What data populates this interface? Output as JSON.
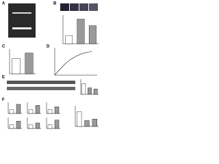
{
  "panel_labels": [
    "A",
    "B",
    "C",
    "D",
    "E",
    "F"
  ],
  "chart_data": [
    {
      "type": "bar",
      "values": [
        1.0,
        3.0,
        2.2
      ],
      "ylim": [
        0,
        3.5
      ],
      "color": "#9a9a9a"
    },
    {
      "type": "bar",
      "values": [
        1.0,
        1.35
      ],
      "ylim": [
        0,
        1.6
      ],
      "color": "#9a9a9a"
    },
    {
      "type": "line",
      "x": [
        0,
        1,
        2,
        3,
        4,
        5,
        6,
        7
      ],
      "values": [
        0,
        20,
        38,
        52,
        62,
        70,
        75,
        78
      ],
      "xlim": [
        0,
        8
      ],
      "ylim": [
        0,
        90
      ],
      "color": "#333333"
    },
    {
      "type": "bar",
      "values": [
        1.0,
        0.6,
        0.5
      ],
      "ylim": [
        0,
        1.4
      ],
      "color": "#9a9a9a"
    },
    {
      "type": "bar",
      "values": [
        1.0,
        2.5
      ],
      "ylim": [
        0,
        3
      ],
      "color": "#9a9a9a"
    },
    {
      "type": "bar",
      "values": [
        1.0,
        2.2
      ],
      "ylim": [
        0,
        3
      ],
      "color": "#9a9a9a"
    },
    {
      "type": "bar",
      "values": [
        1.0,
        1.8
      ],
      "ylim": [
        0,
        3
      ],
      "color": "#9a9a9a"
    },
    {
      "type": "bar",
      "values": [
        1.0,
        2.0
      ],
      "ylim": [
        0,
        3
      ],
      "color": "#9a9a9a"
    },
    {
      "type": "bar",
      "values": [
        1.0,
        1.5
      ],
      "ylim": [
        0,
        3
      ],
      "color": "#9a9a9a"
    },
    {
      "type": "bar",
      "values": [
        1.0,
        2.3
      ],
      "ylim": [
        0,
        3
      ],
      "color": "#9a9a9a"
    },
    {
      "type": "bar",
      "values": [
        1.0,
        0.4,
        0.5
      ],
      "ylim": [
        0,
        1.4
      ],
      "color": "#9a9a9a"
    }
  ]
}
